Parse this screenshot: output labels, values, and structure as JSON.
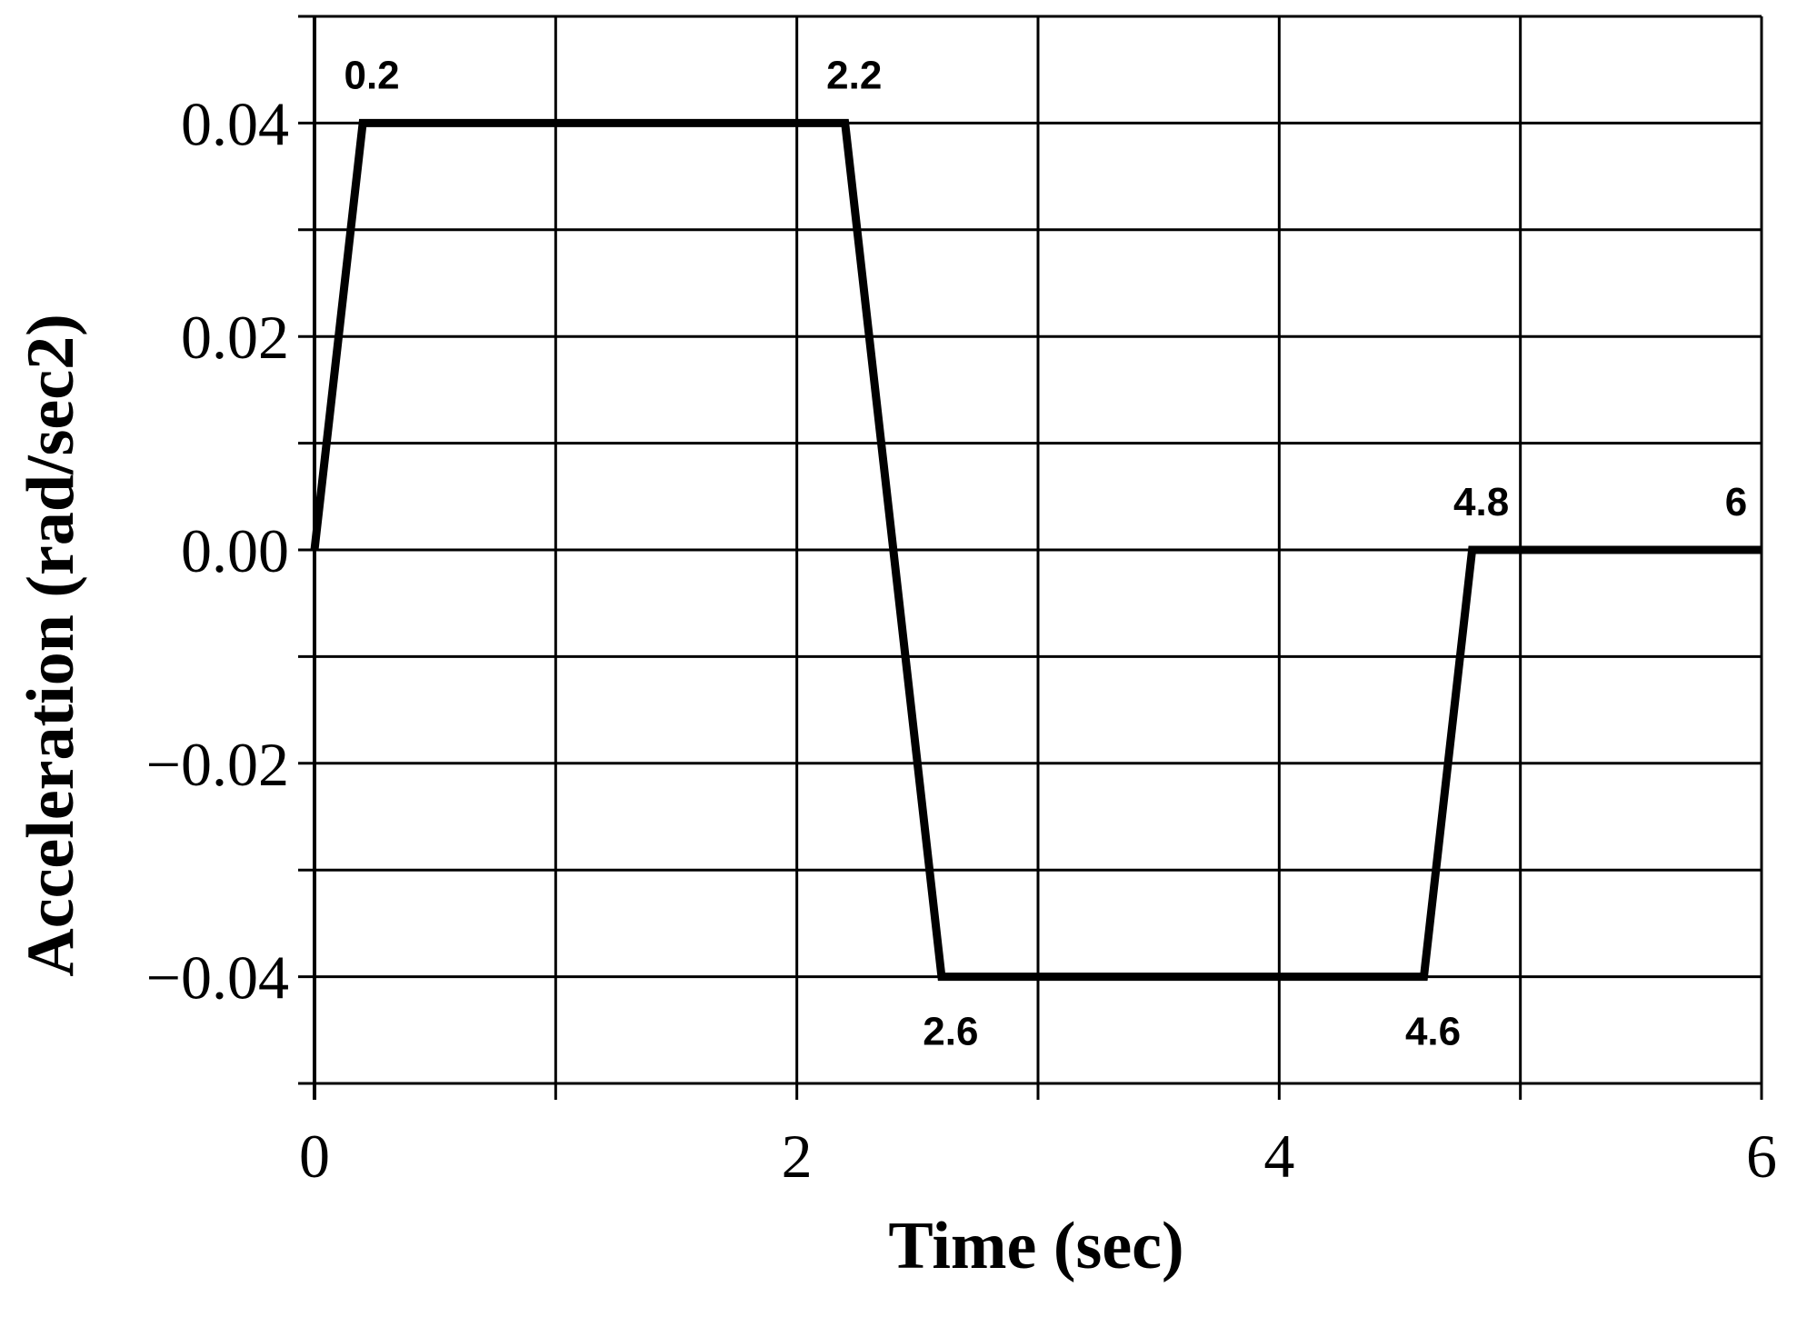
{
  "chart_data": {
    "type": "line",
    "title": "",
    "xlabel": "Time (sec)",
    "ylabel": "Acceleration (rad/sec2)",
    "xlim": [
      0,
      6
    ],
    "ylim": [
      -0.05,
      0.05
    ],
    "x_ticks": [
      0,
      2,
      4,
      6
    ],
    "x_tick_labels": [
      "0",
      "2",
      "4",
      "6"
    ],
    "y_ticks": [
      0.04,
      0.02,
      0.0,
      -0.02,
      -0.04
    ],
    "y_tick_labels": [
      "0.04",
      "0.02",
      "0.00",
      "−0.02",
      "−0.04"
    ],
    "x_grid": [
      0,
      1,
      2,
      3,
      4,
      5,
      6
    ],
    "y_grid": [
      0.05,
      0.04,
      0.03,
      0.02,
      0.01,
      0.0,
      -0.01,
      -0.02,
      -0.03,
      -0.04,
      -0.05
    ],
    "grid": true,
    "series": [
      {
        "color": "#000000",
        "x": [
          0,
          0.2,
          2.2,
          2.6,
          4.6,
          4.8,
          6
        ],
        "y": [
          0,
          0.04,
          0.04,
          -0.04,
          -0.04,
          0,
          0
        ]
      }
    ],
    "annotations": [
      {
        "text": "0.2",
        "x": 0.2,
        "y": 0.04,
        "position": "above"
      },
      {
        "text": "2.2",
        "x": 2.2,
        "y": 0.04,
        "position": "above"
      },
      {
        "text": "2.6",
        "x": 2.6,
        "y": -0.04,
        "position": "below"
      },
      {
        "text": "4.6",
        "x": 4.6,
        "y": -0.04,
        "position": "below"
      },
      {
        "text": "4.8",
        "x": 4.8,
        "y": 0.0,
        "position": "above"
      },
      {
        "text": "6",
        "x": 6,
        "y": 0.0,
        "position": "above-left"
      }
    ]
  }
}
